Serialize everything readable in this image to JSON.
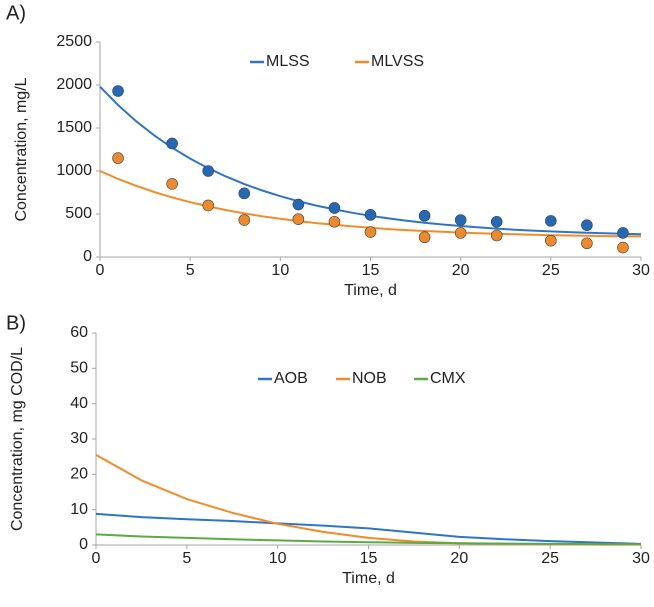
{
  "chart_data": [
    {
      "type": "line",
      "panel_label": "A)",
      "x_label": "Time, d",
      "y_label": "Concentration, mg/L",
      "xlim": [
        0,
        30
      ],
      "xticks": [
        0,
        5,
        10,
        15,
        20,
        25,
        30
      ],
      "ylim": [
        0,
        2500
      ],
      "yticks": [
        0,
        500,
        1000,
        1500,
        2000,
        2500
      ],
      "series": [
        {
          "name": "MLSS",
          "type": "line",
          "color": "#2e75c6",
          "x": [
            0,
            1,
            2,
            3,
            4,
            5,
            6,
            7,
            8,
            9,
            10,
            11,
            12,
            13,
            14,
            15,
            16,
            17,
            18,
            19,
            20,
            21,
            22,
            23,
            24,
            25,
            26,
            27,
            28,
            29,
            30
          ],
          "values": [
            1980,
            1767,
            1579,
            1415,
            1271,
            1144,
            1032,
            935,
            848,
            773,
            707,
            649,
            598,
            553,
            514,
            479,
            449,
            422,
            398,
            378,
            360,
            344,
            330,
            318,
            307,
            298,
            290,
            283,
            276,
            270,
            265
          ]
        },
        {
          "name": "MLVSS",
          "type": "line",
          "color": "#f28c28",
          "x": [
            0,
            1,
            2,
            3,
            4,
            5,
            6,
            7,
            8,
            9,
            10,
            11,
            12,
            13,
            14,
            15,
            16,
            17,
            18,
            19,
            20,
            21,
            22,
            23,
            24,
            25,
            26,
            27,
            28,
            29,
            30
          ],
          "values": [
            1000,
            908,
            828,
            756,
            693,
            637,
            588,
            545,
            507,
            473,
            444,
            417,
            394,
            374,
            356,
            339,
            325,
            313,
            302,
            293,
            284,
            276,
            270,
            264,
            259,
            254,
            250,
            247,
            243,
            241,
            239
          ]
        },
        {
          "type": "scatter",
          "color": "#2369b8",
          "x": [
            1,
            4,
            6,
            8,
            11,
            13,
            15,
            18,
            20,
            22,
            25,
            27,
            29
          ],
          "values": [
            1930,
            1320,
            1000,
            740,
            610,
            570,
            490,
            480,
            430,
            410,
            420,
            370,
            280
          ]
        },
        {
          "type": "scatter",
          "color": "#ee8a2c",
          "x": [
            1,
            4,
            6,
            8,
            11,
            13,
            15,
            18,
            20,
            22,
            25,
            27,
            29
          ],
          "values": [
            1150,
            850,
            600,
            430,
            440,
            410,
            290,
            230,
            280,
            250,
            190,
            160,
            110
          ]
        }
      ]
    },
    {
      "type": "line",
      "panel_label": "B)",
      "x_label": "Time, d",
      "y_label": "Concentration, mg COD/L",
      "xlim": [
        0,
        30
      ],
      "xticks": [
        0,
        5,
        10,
        15,
        20,
        25,
        30
      ],
      "ylim": [
        0,
        60
      ],
      "yticks": [
        0,
        10,
        20,
        30,
        40,
        50,
        60
      ],
      "series": [
        {
          "name": "AOB",
          "type": "line",
          "color": "#2e75c6",
          "x": [
            0,
            2.5,
            5,
            7.5,
            10,
            12.5,
            15,
            17.5,
            20,
            22.5,
            25,
            27.5,
            30
          ],
          "values": [
            8.8,
            7.9,
            7.3,
            6.8,
            6.1,
            5.5,
            4.7,
            3.5,
            2.3,
            1.6,
            1.1,
            0.7,
            0.3
          ]
        },
        {
          "name": "NOB",
          "type": "line",
          "color": "#f28c28",
          "x": [
            0,
            2.5,
            5,
            7.5,
            10,
            12.5,
            15,
            17.5,
            20,
            22.5,
            25,
            27.5,
            30
          ],
          "values": [
            25.5,
            18.3,
            13.0,
            9.1,
            6.0,
            3.7,
            2.0,
            1.0,
            0.5,
            0.3,
            0.2,
            0.1,
            0.1
          ]
        },
        {
          "name": "CMX",
          "type": "line",
          "color": "#5aaa46",
          "x": [
            0,
            2.5,
            5,
            7.5,
            10,
            12.5,
            15,
            17.5,
            20,
            22.5,
            25,
            27.5,
            30
          ],
          "values": [
            3.0,
            2.4,
            2.0,
            1.6,
            1.3,
            1.0,
            0.8,
            0.6,
            0.5,
            0.4,
            0.3,
            0.25,
            0.2
          ]
        }
      ]
    }
  ]
}
